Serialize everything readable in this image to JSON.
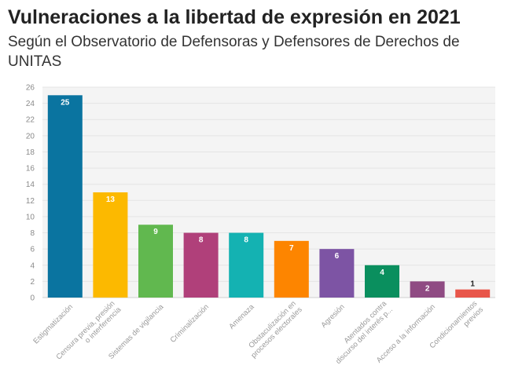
{
  "chart_data": {
    "type": "bar",
    "title": "Vulneraciones a la libertad de expresión en 2021",
    "subtitle": "Según el Observatorio de Defensoras y Defensores de Derechos de UNITAS",
    "xlabel": "",
    "ylabel": "",
    "ylim": [
      0,
      26
    ],
    "yticks": [
      0,
      2,
      4,
      6,
      8,
      10,
      12,
      14,
      16,
      18,
      20,
      22,
      24,
      26
    ],
    "grid": true,
    "data_labels": true,
    "categories": [
      [
        "Estigmatización"
      ],
      [
        "Censura previa, presión",
        "o interferencia"
      ],
      [
        "Sistemas de vigilancia"
      ],
      [
        "Criminalización"
      ],
      [
        "Amenaza"
      ],
      [
        "Obstaculización en",
        "procesos electorales"
      ],
      [
        "Agresión"
      ],
      [
        "Atentados contra",
        "discurso del interés p..."
      ],
      [
        "Acceso a la información"
      ],
      [
        "Condicionamientos",
        "previos"
      ]
    ],
    "values": [
      25,
      13,
      9,
      8,
      8,
      7,
      6,
      4,
      2,
      1
    ],
    "colors": [
      "#0a74a0",
      "#fcb900",
      "#61b84f",
      "#b0407a",
      "#14b2b2",
      "#fd8500",
      "#7d54a4",
      "#0a8f5e",
      "#8f4b83",
      "#e8564a"
    ],
    "label_colors": [
      "#ffffff",
      "#ffffff",
      "#ffffff",
      "#ffffff",
      "#ffffff",
      "#ffffff",
      "#ffffff",
      "#ffffff",
      "#ffffff",
      "#222222"
    ]
  }
}
